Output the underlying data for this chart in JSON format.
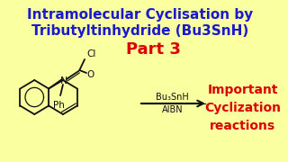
{
  "bg_color": "#FAFFA0",
  "title_line1": "Intramolecular Cyclisation by",
  "title_line2": "Tributyltinhydride (Bu3SnH)",
  "title_color": "#1a1aCC",
  "part3_text": "Part 3",
  "part3_color": "#DD0000",
  "right_line1": "Important",
  "right_line2": "Cyclization",
  "right_line3": "reactions",
  "right_color": "#DD0000",
  "reagent1": "Bu₃SnH",
  "reagent2": "AIBN",
  "reagent_color": "#111111",
  "arrow_color": "#111111",
  "struct_color": "#111111"
}
